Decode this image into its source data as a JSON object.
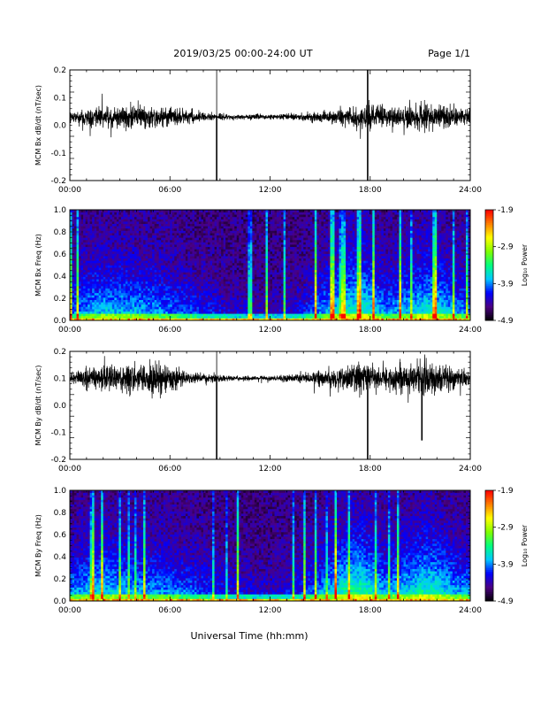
{
  "header": {
    "title": "2019/03/25  00:00-24:00 UT",
    "page": "Page 1/1"
  },
  "footer": {
    "xlabel": "Universal Time (hh:mm)"
  },
  "colorbar": {
    "label": "Log₁₀ Power",
    "ticks": [
      "-1.9",
      "-2.9",
      "-3.9",
      "-4.9"
    ],
    "tick_values": [
      -1.9,
      -2.9,
      -3.9,
      -4.9
    ],
    "range": [
      -4.9,
      -1.9
    ],
    "colors": [
      "#000000",
      "#4b0082",
      "#0000ff",
      "#00c8ff",
      "#00ff80",
      "#80ff00",
      "#ffff00",
      "#ff8000",
      "#ff0000"
    ]
  },
  "x_ticks": [
    "00:00",
    "06:00",
    "12:00",
    "18:00",
    "24:00"
  ],
  "chart_data": [
    {
      "type": "line",
      "ylabel": "MCM Bx dB/dt (nT/sec)",
      "xlim": [
        0,
        24
      ],
      "ylim": [
        -0.2,
        0.2
      ],
      "yticks": [
        "0.2",
        "0.1",
        "0.0",
        "-0.1",
        "-0.2"
      ],
      "ytick_values": [
        0.2,
        0.1,
        0.0,
        -0.1,
        -0.2
      ],
      "baseline": 0.03,
      "spikes": [
        {
          "x": 8.8,
          "y": -0.2
        },
        {
          "x": 17.85,
          "y": -0.2
        },
        {
          "x": 17.85,
          "y": 0.2
        }
      ],
      "activity": [
        {
          "x": 0.0,
          "amp": 0.015
        },
        {
          "x": 1.5,
          "amp": 0.03
        },
        {
          "x": 3.0,
          "amp": 0.04
        },
        {
          "x": 5.0,
          "amp": 0.035
        },
        {
          "x": 7.0,
          "amp": 0.02
        },
        {
          "x": 8.5,
          "amp": 0.012
        },
        {
          "x": 10.0,
          "amp": 0.008
        },
        {
          "x": 12.0,
          "amp": 0.008
        },
        {
          "x": 14.0,
          "amp": 0.012
        },
        {
          "x": 16.0,
          "amp": 0.025
        },
        {
          "x": 17.5,
          "amp": 0.04
        },
        {
          "x": 19.0,
          "amp": 0.03
        },
        {
          "x": 21.0,
          "amp": 0.045
        },
        {
          "x": 22.5,
          "amp": 0.035
        },
        {
          "x": 24.0,
          "amp": 0.02
        }
      ]
    },
    {
      "type": "heatmap",
      "ylabel": "MCM Bx Freq (Hz)",
      "xlim": [
        0,
        24
      ],
      "ylim": [
        0.0,
        1.0
      ],
      "yticks": [
        "1.0",
        "0.8",
        "0.6",
        "0.4",
        "0.2",
        "0.0"
      ],
      "ytick_values": [
        1.0,
        0.8,
        0.6,
        0.4,
        0.2,
        0.0
      ],
      "zrange": [
        -4.9,
        -1.9
      ],
      "activity": [
        {
          "x": 0.0,
          "level": 0.45
        },
        {
          "x": 1.5,
          "level": 0.6
        },
        {
          "x": 3.0,
          "level": 0.6
        },
        {
          "x": 5.0,
          "level": 0.55
        },
        {
          "x": 7.0,
          "level": 0.4
        },
        {
          "x": 8.5,
          "level": 0.3
        },
        {
          "x": 10.0,
          "level": 0.2
        },
        {
          "x": 12.0,
          "level": 0.15
        },
        {
          "x": 14.0,
          "level": 0.3
        },
        {
          "x": 16.5,
          "level": 0.75
        },
        {
          "x": 17.5,
          "level": 0.8
        },
        {
          "x": 19.0,
          "level": 0.5
        },
        {
          "x": 21.5,
          "level": 0.75
        },
        {
          "x": 23.0,
          "level": 0.55
        },
        {
          "x": 24.0,
          "level": 0.45
        }
      ]
    },
    {
      "type": "line",
      "ylabel": "MCM By dB/dt (nT/sec)",
      "xlim": [
        0,
        24
      ],
      "ylim": [
        -0.2,
        0.2
      ],
      "yticks": [
        "0.2",
        "0.1",
        "0.0",
        "-0.1",
        "-0.2"
      ],
      "ytick_values": [
        0.2,
        0.1,
        0.0,
        -0.1,
        -0.2
      ],
      "baseline": 0.1,
      "spikes": [
        {
          "x": 8.8,
          "y": -0.2
        },
        {
          "x": 17.85,
          "y": -0.2
        },
        {
          "x": 21.1,
          "y": -0.13
        }
      ],
      "activity": [
        {
          "x": 0.0,
          "amp": 0.02
        },
        {
          "x": 1.5,
          "amp": 0.035
        },
        {
          "x": 3.0,
          "amp": 0.045
        },
        {
          "x": 5.0,
          "amp": 0.05
        },
        {
          "x": 7.0,
          "amp": 0.025
        },
        {
          "x": 8.5,
          "amp": 0.012
        },
        {
          "x": 10.0,
          "amp": 0.008
        },
        {
          "x": 12.0,
          "amp": 0.008
        },
        {
          "x": 14.0,
          "amp": 0.015
        },
        {
          "x": 16.0,
          "amp": 0.035
        },
        {
          "x": 17.5,
          "amp": 0.05
        },
        {
          "x": 19.0,
          "amp": 0.035
        },
        {
          "x": 21.0,
          "amp": 0.06
        },
        {
          "x": 22.5,
          "amp": 0.04
        },
        {
          "x": 24.0,
          "amp": 0.025
        }
      ]
    },
    {
      "type": "heatmap",
      "ylabel": "MCM By Freq (Hz)",
      "xlim": [
        0,
        24
      ],
      "ylim": [
        0.0,
        1.0
      ],
      "yticks": [
        "1.0",
        "0.8",
        "0.6",
        "0.4",
        "0.2",
        "0.0"
      ],
      "ytick_values": [
        1.0,
        0.8,
        0.6,
        0.4,
        0.2,
        0.0
      ],
      "zrange": [
        -4.9,
        -1.9
      ],
      "activity": [
        {
          "x": 0.0,
          "level": 0.5
        },
        {
          "x": 1.5,
          "level": 0.65
        },
        {
          "x": 3.0,
          "level": 0.6
        },
        {
          "x": 5.0,
          "level": 0.55
        },
        {
          "x": 7.0,
          "level": 0.45
        },
        {
          "x": 8.5,
          "level": 0.35
        },
        {
          "x": 10.0,
          "level": 0.25
        },
        {
          "x": 12.0,
          "level": 0.2
        },
        {
          "x": 14.0,
          "level": 0.35
        },
        {
          "x": 16.5,
          "level": 0.8
        },
        {
          "x": 17.5,
          "level": 0.85
        },
        {
          "x": 19.0,
          "level": 0.55
        },
        {
          "x": 21.5,
          "level": 0.8
        },
        {
          "x": 23.0,
          "level": 0.6
        },
        {
          "x": 24.0,
          "level": 0.5
        }
      ]
    }
  ]
}
